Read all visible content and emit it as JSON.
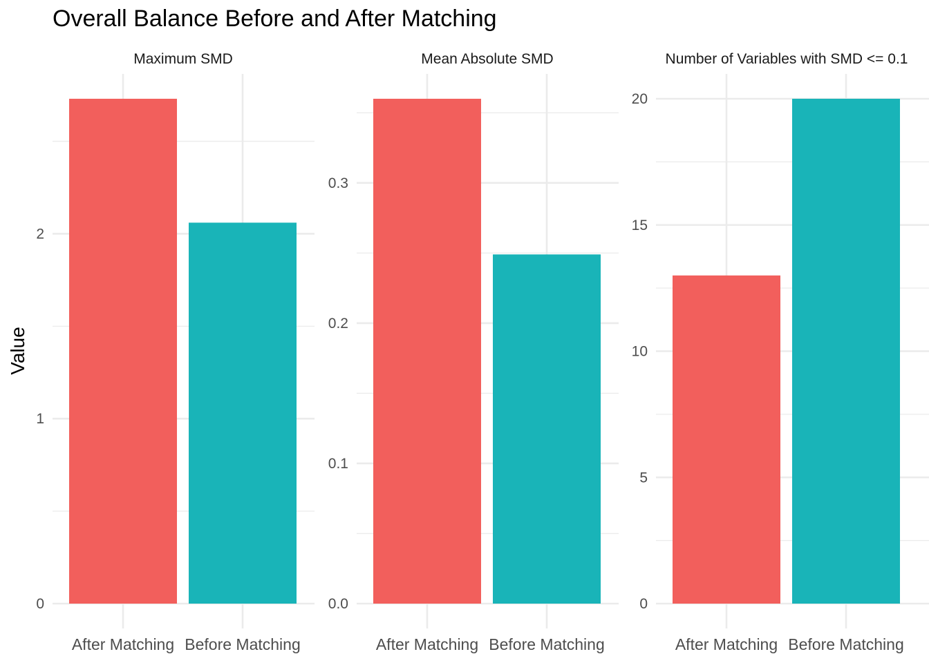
{
  "chart_data": {
    "type": "bar",
    "title": "Overall Balance Before and After Matching",
    "ylabel": "Value",
    "categories": [
      "After Matching",
      "Before Matching"
    ],
    "colors": [
      "#F25F5C",
      "#19B4B8"
    ],
    "grid": true,
    "panels": [
      {
        "name": "Maximum SMD",
        "values": [
          2.73,
          2.06
        ],
        "ylim": [
          0,
          2.73
        ],
        "ticks": [
          0,
          1,
          2
        ],
        "tick_labels": [
          "0",
          "1",
          "2"
        ],
        "minor_ticks": [
          0.5,
          1.5,
          2.5
        ]
      },
      {
        "name": "Mean Absolute SMD",
        "values": [
          0.36,
          0.249
        ],
        "ylim": [
          0,
          0.36
        ],
        "ticks": [
          0.0,
          0.1,
          0.2,
          0.3
        ],
        "tick_labels": [
          "0.0",
          "0.1",
          "0.2",
          "0.3"
        ],
        "minor_ticks": [
          0.05,
          0.15,
          0.25,
          0.35
        ]
      },
      {
        "name": "Number of Variables with SMD <= 0.1",
        "values": [
          13,
          20
        ],
        "ylim": [
          0,
          20
        ],
        "ticks": [
          0,
          5,
          10,
          15,
          20
        ],
        "tick_labels": [
          "0",
          "5",
          "10",
          "15",
          "20"
        ],
        "minor_ticks": [
          2.5,
          7.5,
          12.5,
          17.5
        ]
      }
    ]
  }
}
